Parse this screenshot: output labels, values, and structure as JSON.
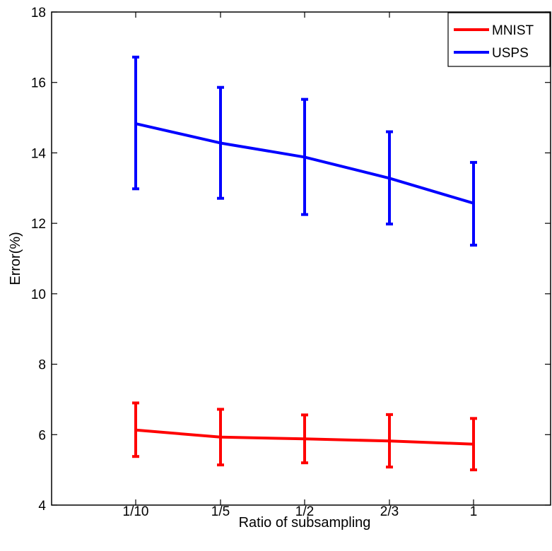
{
  "chart_data": {
    "type": "line",
    "categories": [
      "1/10",
      "1/5",
      "1/2",
      "2/3",
      "1"
    ],
    "xlabel": "Ratio of subsampling",
    "ylabel": "Error(%)",
    "ylim": [
      4,
      18
    ],
    "yticks": [
      4,
      6,
      8,
      10,
      12,
      14,
      16,
      18
    ],
    "grid": false,
    "legend": "top-right",
    "series": [
      {
        "name": "MNIST",
        "color": "#ff0000",
        "values": [
          6.13,
          5.93,
          5.88,
          5.82,
          5.73
        ],
        "lower": [
          5.38,
          5.14,
          5.2,
          5.08,
          5.0
        ],
        "upper": [
          6.9,
          6.72,
          6.56,
          6.57,
          6.46
        ]
      },
      {
        "name": "USPS",
        "color": "#0000ff",
        "values": [
          14.83,
          14.28,
          13.88,
          13.28,
          12.57
        ],
        "lower": [
          12.98,
          12.71,
          12.25,
          11.98,
          11.38
        ],
        "upper": [
          16.72,
          15.86,
          15.52,
          14.6,
          13.73
        ]
      }
    ]
  }
}
